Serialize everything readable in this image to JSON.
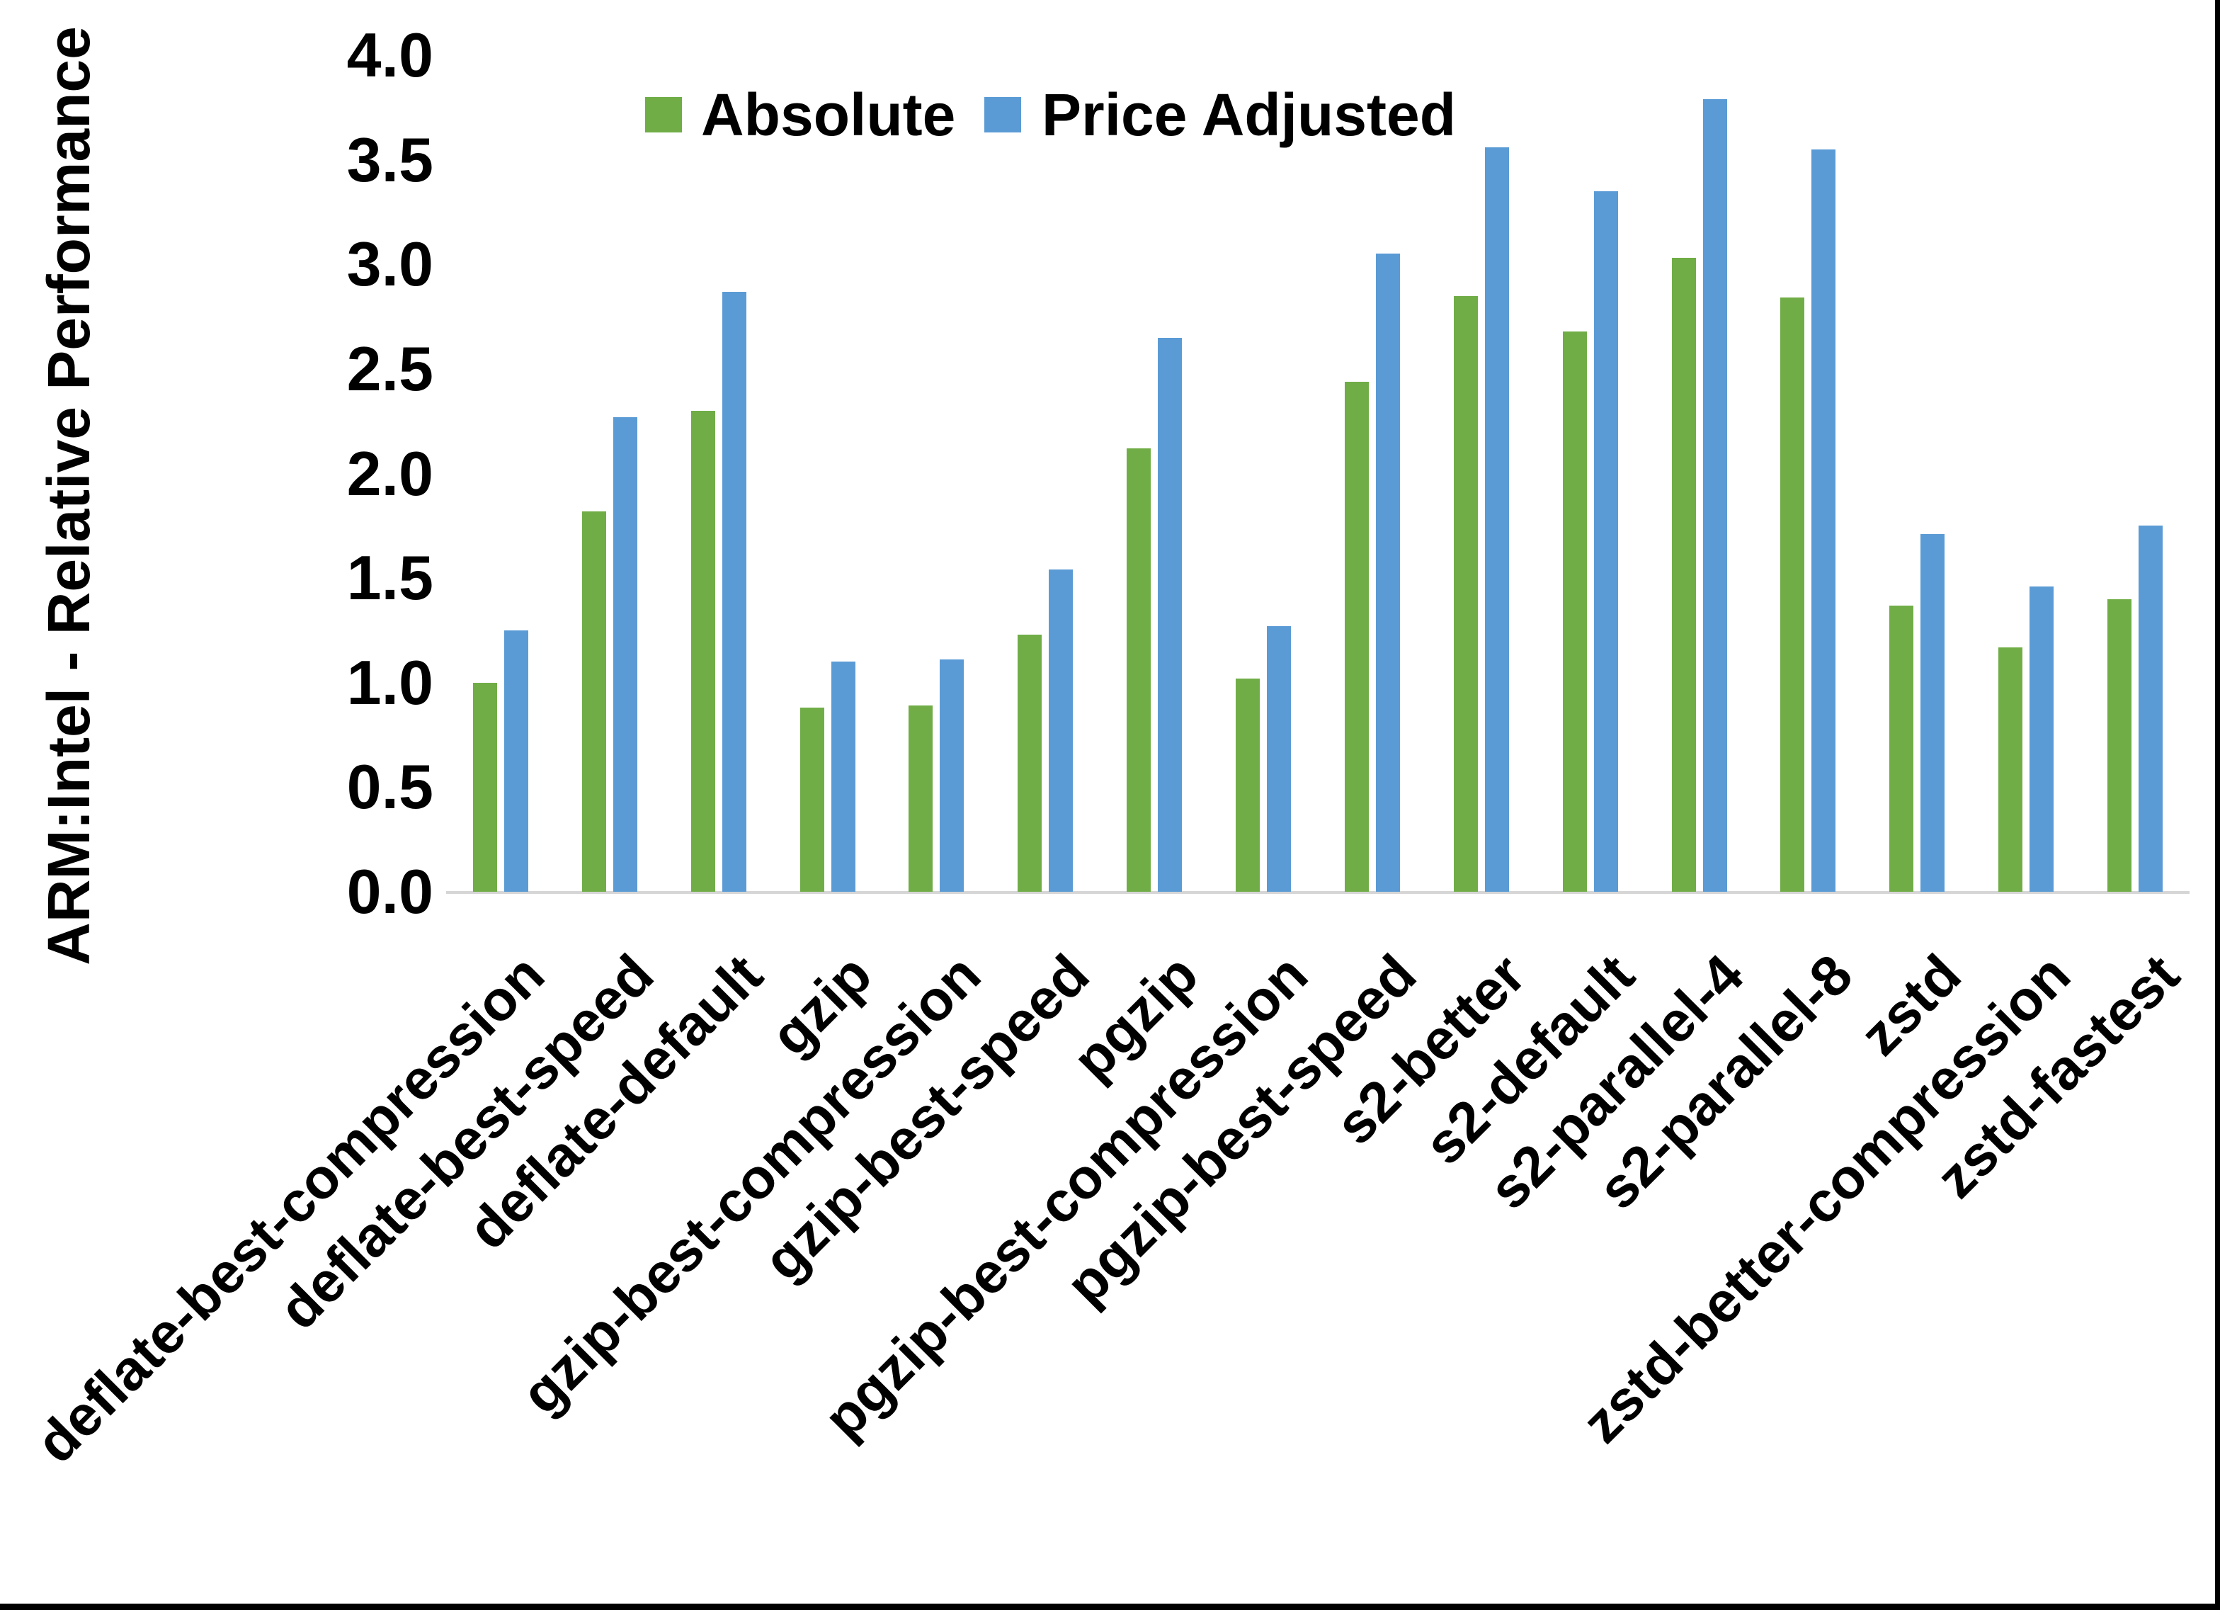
{
  "chart_data": {
    "type": "bar",
    "title": "",
    "ylabel": "ARM:Intel - Relative Performance",
    "xlabel": "",
    "ylim": [
      0,
      4
    ],
    "ytick_step": 0.5,
    "ytick_labels": [
      "0.0",
      "0.5",
      "1.0",
      "1.5",
      "2.0",
      "2.5",
      "3.0",
      "3.5",
      "4.0"
    ],
    "grid": false,
    "legend_position": "top-center",
    "categories": [
      "deflate-best-compression",
      "deflate-best-speed",
      "deflate-default",
      "gzip",
      "gzip-best-compression",
      "gzip-best-speed",
      "pgzip",
      "pgzip-best-compression",
      "pgzip-best-speed",
      "s2-better",
      "s2-default",
      "s2-parallel-4",
      "s2-parallel-8",
      "zstd",
      "zstd-better-compression",
      "zstd-fastest"
    ],
    "series": [
      {
        "name": "Absolute",
        "color": "#70AD47",
        "values": [
          1.0,
          1.82,
          2.3,
          0.88,
          0.89,
          1.23,
          2.12,
          1.02,
          2.44,
          2.85,
          2.68,
          3.03,
          2.84,
          1.37,
          1.17,
          1.4
        ]
      },
      {
        "name": "Price Adjusted",
        "color": "#5B9BD5",
        "values": [
          1.25,
          2.27,
          2.87,
          1.1,
          1.11,
          1.54,
          2.65,
          1.27,
          3.05,
          3.56,
          3.35,
          3.79,
          3.55,
          1.71,
          1.46,
          1.75
        ]
      }
    ]
  }
}
